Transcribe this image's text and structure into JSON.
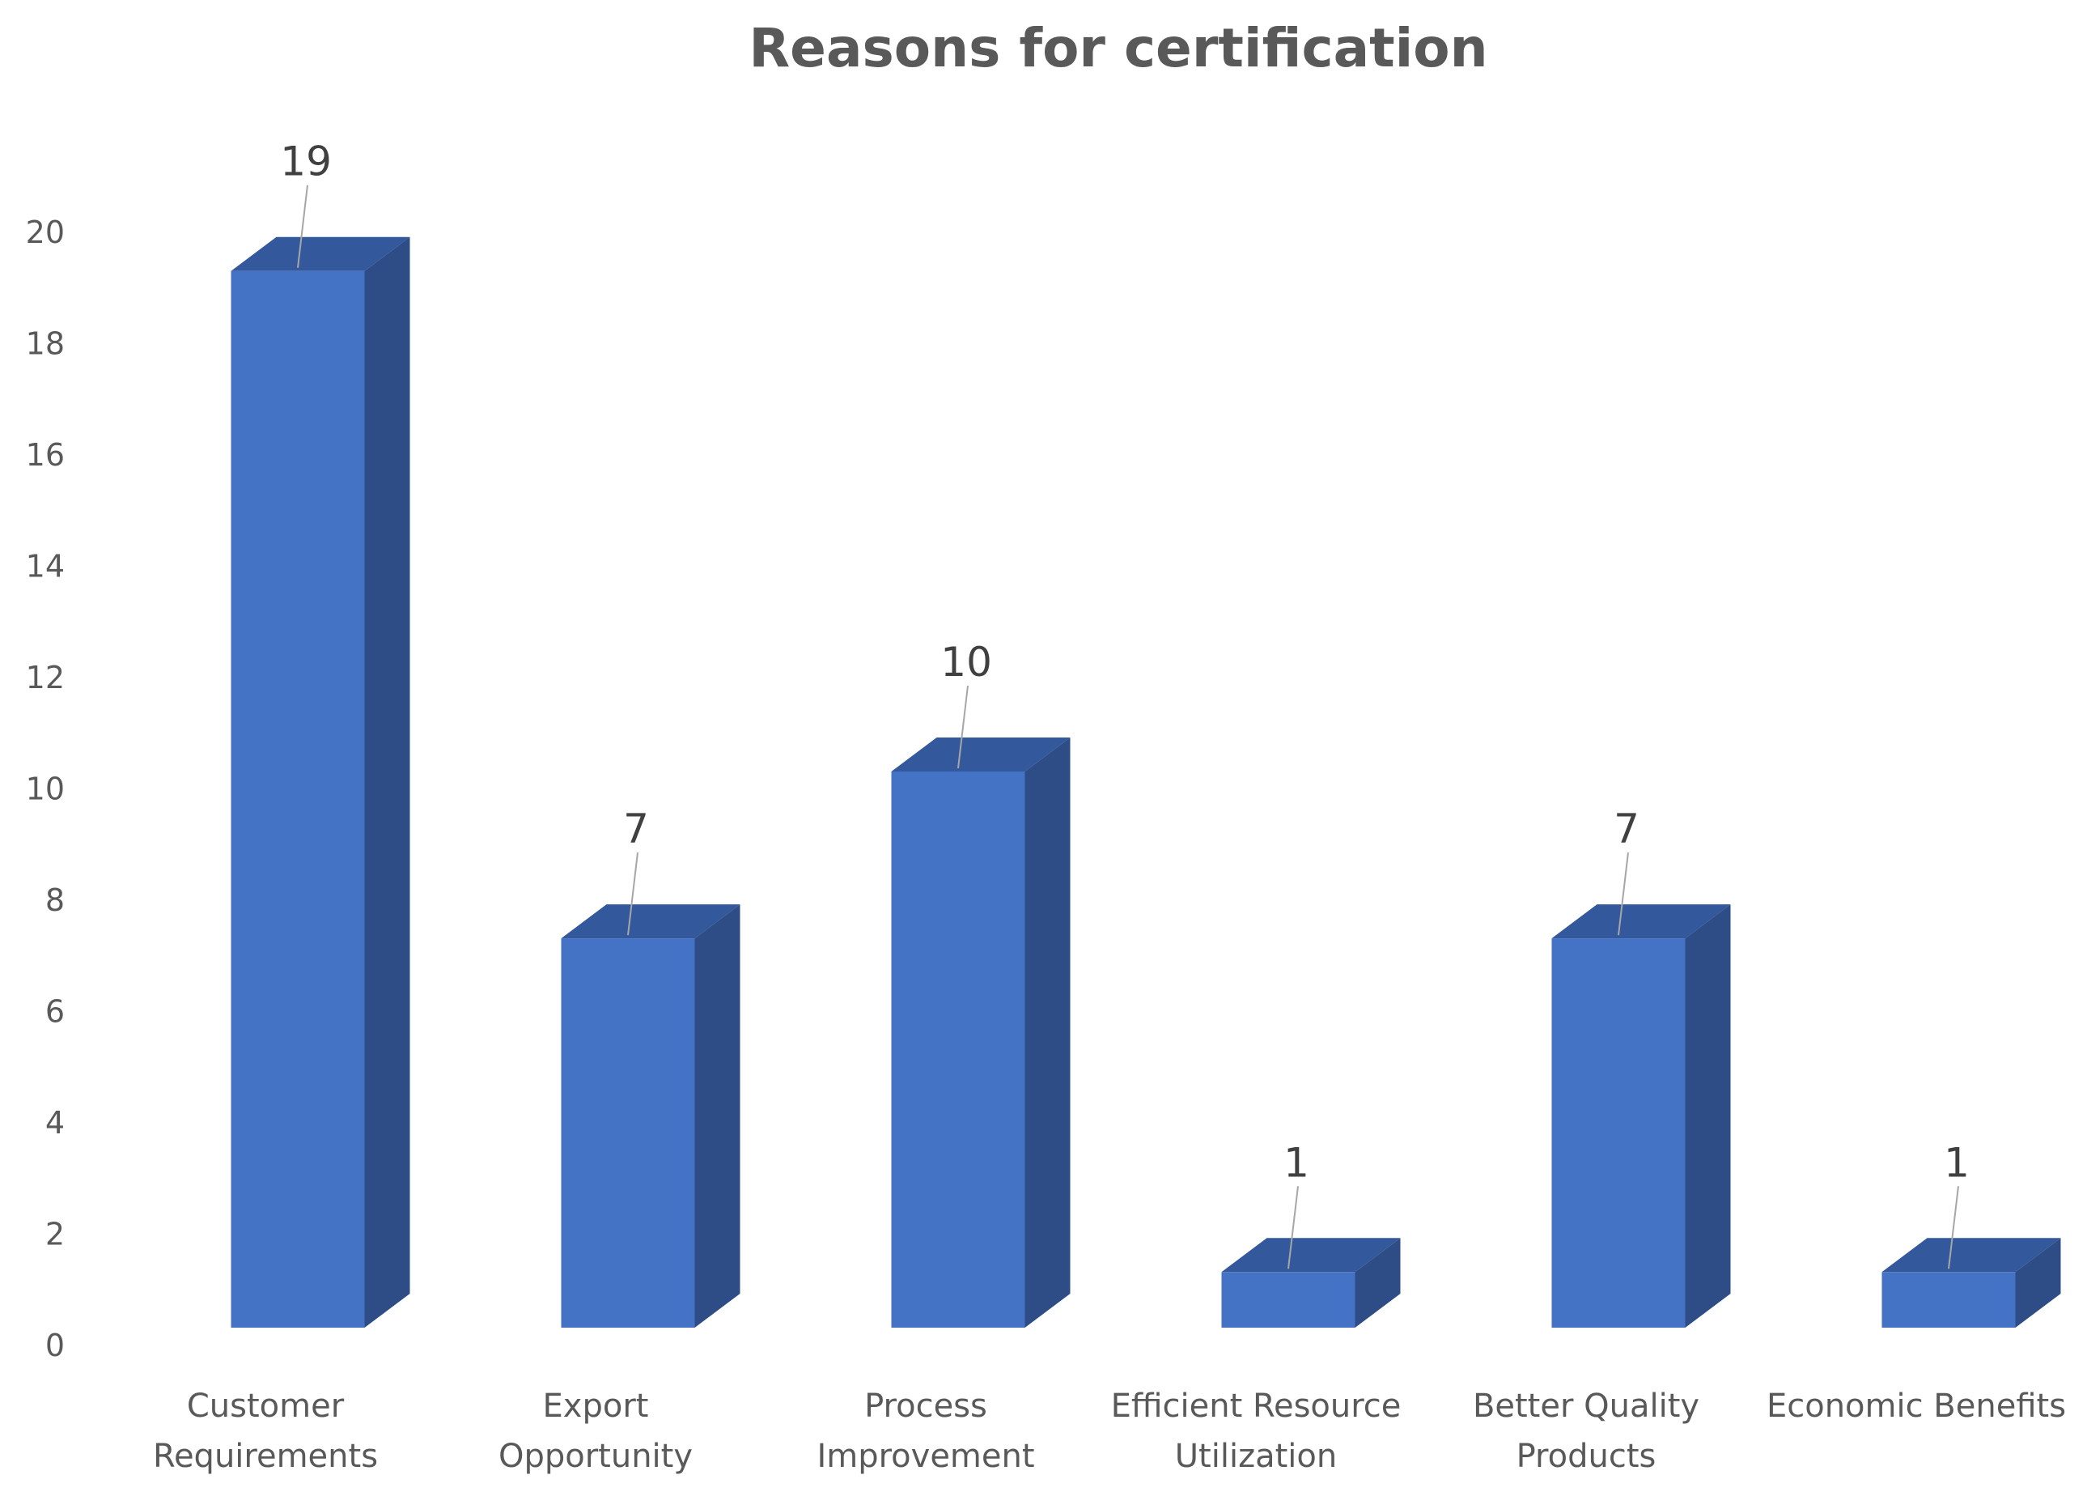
{
  "chart_data": {
    "type": "bar",
    "style": "3d-column",
    "title": "Reasons for certification",
    "xlabel": "",
    "ylabel": "",
    "categories": [
      [
        "Customer",
        "Requirements"
      ],
      [
        "Export",
        "Opportunity"
      ],
      [
        "Process",
        "Improvement"
      ],
      [
        "Efficient Resource",
        "Utilization"
      ],
      [
        "Better Quality",
        "Products"
      ],
      [
        "Economic Benefits"
      ]
    ],
    "values": [
      19,
      7,
      10,
      1,
      7,
      1
    ],
    "ylim": [
      0,
      20
    ],
    "yticks": [
      "0",
      "2",
      "4",
      "6",
      "8",
      "10",
      "12",
      "14",
      "16",
      "18",
      "20"
    ],
    "grid": false,
    "legend": "none",
    "colors": {
      "bar_front": "#4472c4",
      "bar_side": "#2e4d87",
      "bar_top": "#34589c",
      "text": "#595959",
      "leader_line": "#a6a6a6"
    }
  }
}
